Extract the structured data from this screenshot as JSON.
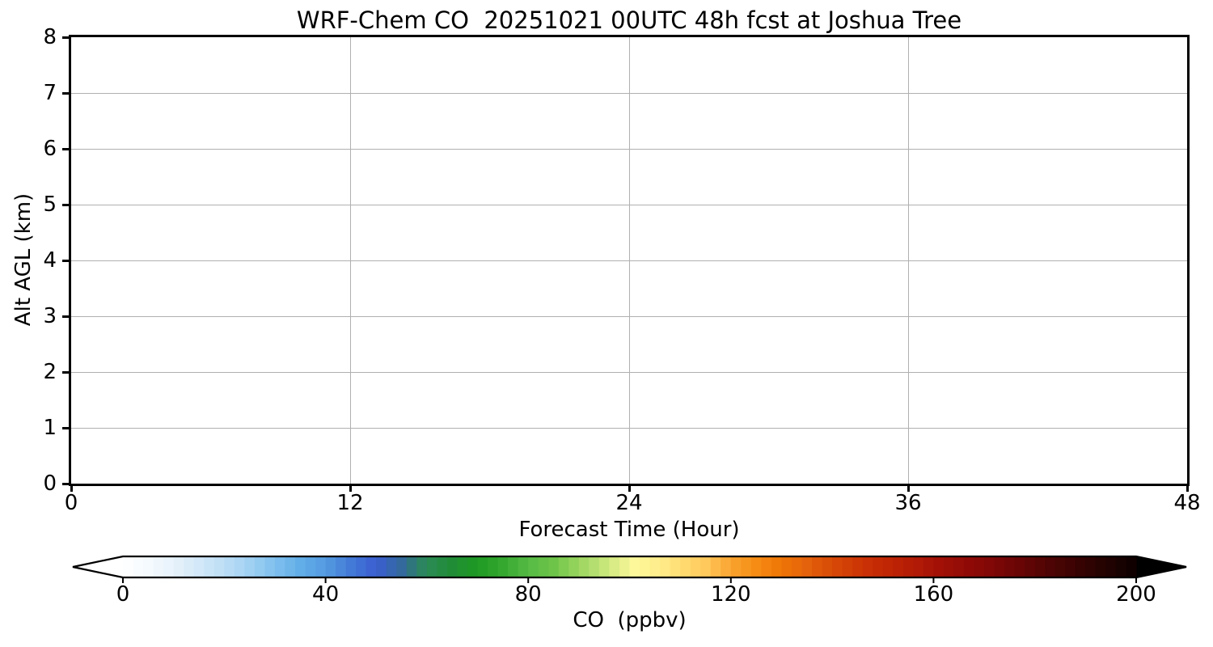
{
  "figure": {
    "background": "#ffffff"
  },
  "chart_data": {
    "type": "heatmap",
    "title": "WRF-Chem CO  20251021 00UTC 48h fcst at Joshua Tree",
    "xlabel": "Forecast Time (Hour)",
    "ylabel": "Alt AGL (km)",
    "xlim": [
      0,
      48
    ],
    "ylim": [
      0,
      8
    ],
    "x_ticks": [
      0,
      12,
      24,
      36,
      48
    ],
    "y_ticks": [
      0,
      1,
      2,
      3,
      4,
      5,
      6,
      7,
      8
    ],
    "grid": true,
    "field_note": "plot area is uniformly white (no CO shading rendered above the lowest color level)",
    "colorbar": {
      "label": "CO  (ppbv)",
      "orientation": "horizontal",
      "range": [
        0,
        200
      ],
      "ticks": [
        0,
        40,
        80,
        120,
        160,
        200
      ],
      "extend": "both",
      "under_color": "#ffffff",
      "over_color": "#000000",
      "segments": 100,
      "stops": [
        [
          0.0,
          "#ffffff"
        ],
        [
          0.025,
          "#f5fafe"
        ],
        [
          0.05,
          "#e7f2fb"
        ],
        [
          0.075,
          "#d3e8f8"
        ],
        [
          0.1,
          "#bddef6"
        ],
        [
          0.125,
          "#a0d0f2"
        ],
        [
          0.15,
          "#7fc0ee"
        ],
        [
          0.175,
          "#62aee8"
        ],
        [
          0.2,
          "#549be0"
        ],
        [
          0.225,
          "#4379d7"
        ],
        [
          0.25,
          "#3a5ed0"
        ],
        [
          0.275,
          "#33699c"
        ],
        [
          0.288,
          "#2e7a72"
        ],
        [
          0.3,
          "#2b8b55"
        ],
        [
          0.325,
          "#208d36"
        ],
        [
          0.35,
          "#1f9a22"
        ],
        [
          0.375,
          "#35a830"
        ],
        [
          0.4,
          "#55bb44"
        ],
        [
          0.425,
          "#6ec449"
        ],
        [
          0.45,
          "#9ad560"
        ],
        [
          0.475,
          "#c6e67a"
        ],
        [
          0.49,
          "#e3ef8b"
        ],
        [
          0.505,
          "#fdf99b"
        ],
        [
          0.535,
          "#ffe986"
        ],
        [
          0.555,
          "#ffd96e"
        ],
        [
          0.575,
          "#ffc95c"
        ],
        [
          0.6,
          "#f9a430"
        ],
        [
          0.625,
          "#f68c14"
        ],
        [
          0.65,
          "#ee7504"
        ],
        [
          0.675,
          "#e4620c"
        ],
        [
          0.7,
          "#d84a07"
        ],
        [
          0.73,
          "#cb3305"
        ],
        [
          0.755,
          "#c02604"
        ],
        [
          0.785,
          "#b01a06"
        ],
        [
          0.8,
          "#a61206"
        ],
        [
          0.835,
          "#8f0a06"
        ],
        [
          0.86,
          "#7d0706"
        ],
        [
          0.89,
          "#650505"
        ],
        [
          0.915,
          "#4e0404"
        ],
        [
          0.94,
          "#3a0302"
        ],
        [
          0.97,
          "#220201"
        ],
        [
          1.0,
          "#0d0000"
        ]
      ]
    }
  },
  "colors": {
    "grid": "#b0b0b0",
    "axis": "#000000",
    "text": "#000000",
    "background": "#ffffff"
  }
}
